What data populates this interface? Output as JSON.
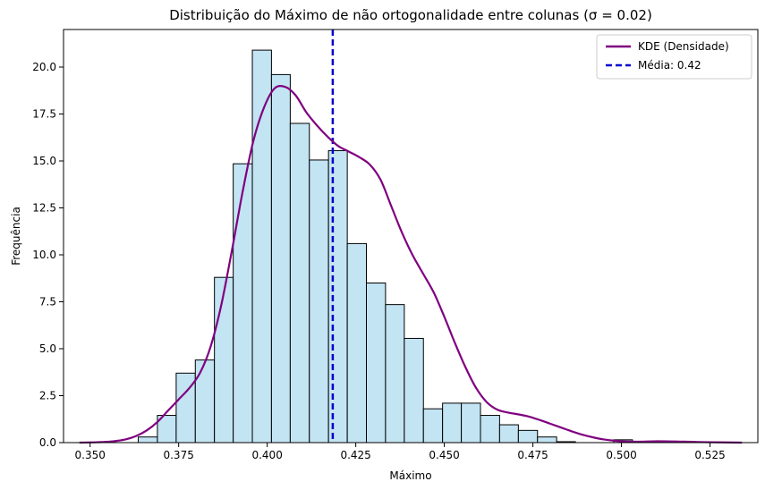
{
  "chart_data": {
    "type": "bar",
    "title": "Distribuição do Máximo de não ortogonalidade entre colunas (σ = 0.02)",
    "xlabel": "Máximo",
    "ylabel": "Frequência",
    "xlim": [
      0.3425,
      0.5385
    ],
    "ylim": [
      0,
      22
    ],
    "xticks": [
      0.35,
      0.375,
      0.4,
      0.425,
      0.45,
      0.475,
      0.5,
      0.525
    ],
    "xtick_labels": [
      "0.350",
      "0.375",
      "0.400",
      "0.425",
      "0.450",
      "0.475",
      "0.500",
      "0.525"
    ],
    "yticks": [
      0,
      2.5,
      5,
      7.5,
      10,
      12.5,
      15,
      17.5,
      20
    ],
    "ytick_labels": [
      "0.0",
      "2.5",
      "5.0",
      "7.5",
      "10.0",
      "12.5",
      "15.0",
      "17.5",
      "20.0"
    ],
    "grid": false,
    "legend_position": "top-right",
    "histogram": {
      "bin_edges": [
        0.3636,
        0.369,
        0.3743,
        0.3797,
        0.3851,
        0.3904,
        0.3958,
        0.4012,
        0.4065,
        0.4119,
        0.4173,
        0.4226,
        0.428,
        0.4334,
        0.4387,
        0.4441,
        0.4495,
        0.4548,
        0.4602,
        0.4656,
        0.4709,
        0.4763,
        0.4817,
        0.487,
        0.4924,
        0.4978,
        0.5031,
        0.5085,
        0.5139,
        0.5192
      ],
      "values": [
        0.3,
        1.45,
        3.7,
        4.4,
        8.8,
        14.85,
        20.9,
        19.6,
        17.0,
        15.05,
        15.55,
        10.6,
        8.5,
        7.35,
        5.55,
        1.8,
        2.1,
        2.1,
        1.45,
        0.95,
        0.65,
        0.3,
        0.05,
        0.0,
        0.0,
        0.15,
        0.05,
        0.0,
        0.0
      ],
      "fill_color": "#c3e4f3",
      "edge_color": "#000000"
    },
    "kde": {
      "name": "KDE (Densidade)",
      "color": "#800080",
      "x": [
        0.347,
        0.352,
        0.356,
        0.36,
        0.363,
        0.366,
        0.369,
        0.372,
        0.375,
        0.378,
        0.381,
        0.384,
        0.387,
        0.39,
        0.393,
        0.396,
        0.399,
        0.402,
        0.405,
        0.408,
        0.411,
        0.414,
        0.417,
        0.42,
        0.423,
        0.426,
        0.429,
        0.432,
        0.435,
        0.438,
        0.441,
        0.444,
        0.447,
        0.45,
        0.453,
        0.456,
        0.459,
        0.462,
        0.465,
        0.468,
        0.471,
        0.474,
        0.477,
        0.48,
        0.483,
        0.486,
        0.489,
        0.492,
        0.495,
        0.498,
        0.501,
        0.505,
        0.51,
        0.515,
        0.52,
        0.525,
        0.534
      ],
      "y": [
        0.0,
        0.02,
        0.06,
        0.17,
        0.35,
        0.65,
        1.1,
        1.7,
        2.3,
        2.9,
        3.7,
        5.1,
        7.3,
        10.2,
        13.3,
        16.0,
        17.8,
        18.85,
        18.95,
        18.5,
        17.6,
        16.9,
        16.3,
        15.8,
        15.5,
        15.2,
        14.8,
        14.0,
        12.6,
        11.2,
        10.0,
        9.0,
        8.0,
        6.7,
        5.3,
        4.0,
        2.9,
        2.15,
        1.75,
        1.6,
        1.5,
        1.38,
        1.2,
        1.0,
        0.8,
        0.6,
        0.42,
        0.28,
        0.17,
        0.1,
        0.06,
        0.05,
        0.07,
        0.06,
        0.04,
        0.02,
        0.0
      ]
    },
    "mean_line": {
      "name": "Média: 0.42",
      "value": 0.4185,
      "color": "#0000cd",
      "style": "dashed"
    }
  }
}
